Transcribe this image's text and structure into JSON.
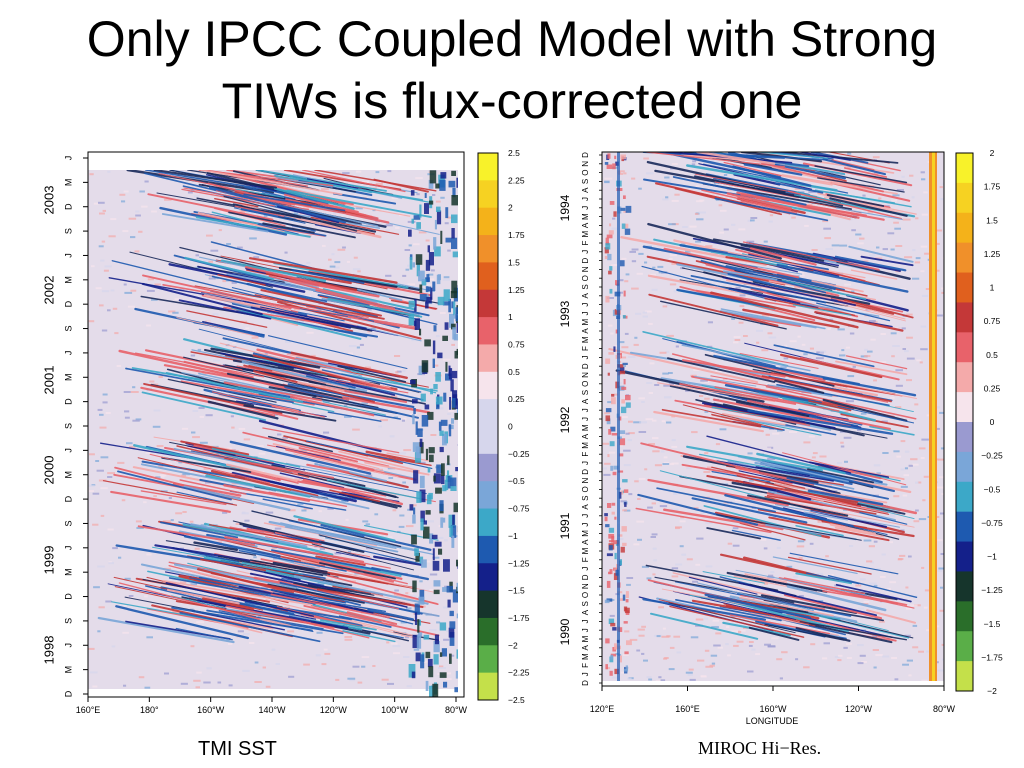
{
  "slide": {
    "title_line1": "Only IPCC Coupled Model with Strong",
    "title_line2": "TIWs is flux-corrected one"
  },
  "captions": {
    "left": "TMI SST",
    "right": "MIROC Hi−Res."
  },
  "colors": {
    "background_fill": "#e4dcea",
    "colorbar": [
      "#c4e04a",
      "#5aae48",
      "#2a6e2a",
      "#16352c",
      "#14208a",
      "#1e5ab0",
      "#3ca8c8",
      "#7aa6d8",
      "#9a9ad0",
      "#d6d6ec",
      "#f6e4ec",
      "#f4aaaa",
      "#e8626a",
      "#c43838",
      "#e0601e",
      "#f0902a",
      "#f4b21a",
      "#f6d222",
      "#f8f22a"
    ]
  },
  "chart_data": [
    {
      "type": "heatmap",
      "caption": "TMI SST",
      "x_ticks": [
        "160°E",
        "180°",
        "160°W",
        "140°W",
        "120°W",
        "100°W",
        "80°W"
      ],
      "year_labels": [
        "1998",
        "1999",
        "2000",
        "2001",
        "2002",
        "2003"
      ],
      "month_ticks": [
        "D",
        "M",
        "J",
        "S"
      ],
      "colorbar_labels": [
        "2.5",
        "2.25",
        "2",
        "1.75",
        "1.5",
        "1.25",
        "1",
        "0.75",
        "0.5",
        "0.25",
        "0",
        "−0.25",
        "−0.5",
        "−0.75",
        "−1",
        "−1.25",
        "−1.5",
        "−1.75",
        "−2",
        "−2.25",
        "−2.5"
      ],
      "colorbar_range": [
        -2.5,
        2.5
      ]
    },
    {
      "type": "heatmap",
      "caption": "MIROC Hi−Res.",
      "xlabel": "LONGITUDE",
      "x_ticks": [
        "120°E",
        "160°E",
        "160°W",
        "120°W",
        "80°W"
      ],
      "year_labels": [
        "1990",
        "1991",
        "1992",
        "1993",
        "1994"
      ],
      "month_letters": "DJFMAMJJASON",
      "colorbar_labels": [
        "2",
        "1.75",
        "1.5",
        "1.25",
        "1",
        "0.75",
        "0.5",
        "0.25",
        "0",
        "−0.25",
        "−0.5",
        "−0.75",
        "−1",
        "−1.25",
        "−1.5",
        "−1.75",
        "−2"
      ],
      "colorbar_range": [
        -2,
        2
      ]
    }
  ]
}
